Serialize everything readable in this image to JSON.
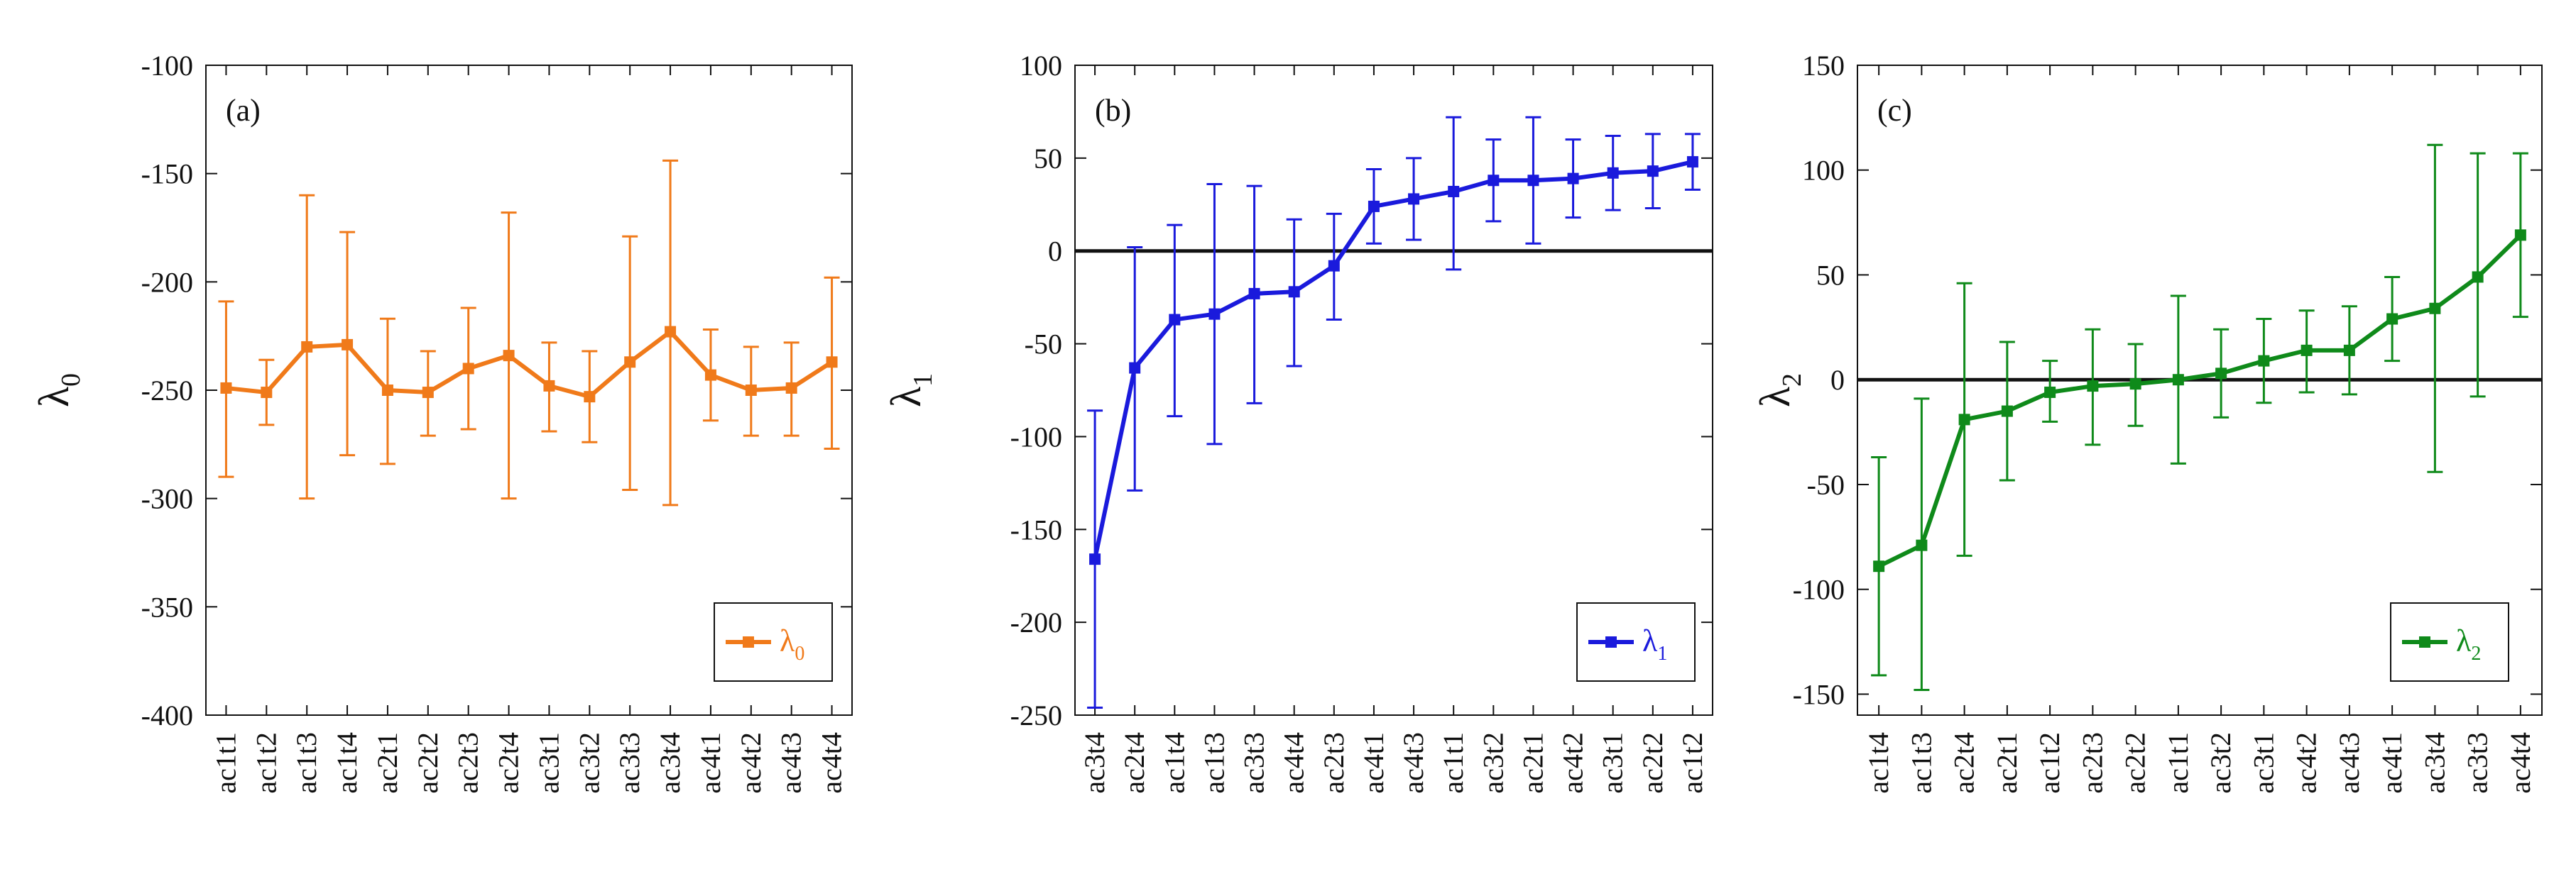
{
  "chart_data": [
    {
      "type": "line",
      "panel_label": "(a)",
      "ylabel": "λ",
      "ylabel_sub": "0",
      "legend": {
        "symbol": "λ",
        "sub": "0",
        "position": "bottom-right"
      },
      "color": "#f07a1a",
      "ylim": [
        -400,
        -100
      ],
      "yticks": [
        -100,
        -150,
        -200,
        -250,
        -300,
        -350,
        -400
      ],
      "zero_line": false,
      "grid": false,
      "categories": [
        "ac1t1",
        "ac1t2",
        "ac1t3",
        "ac1t4",
        "ac2t1",
        "ac2t2",
        "ac2t3",
        "ac2t4",
        "ac3t1",
        "ac3t2",
        "ac3t3",
        "ac3t4",
        "ac4t1",
        "ac4t2",
        "ac4t3",
        "ac4t4"
      ],
      "values": [
        -249,
        -251,
        -230,
        -229,
        -250,
        -251,
        -240,
        -234,
        -248,
        -253,
        -237,
        -223,
        -243,
        -250,
        -249,
        -237
      ],
      "err_low": [
        -290,
        -266,
        -300,
        -280,
        -284,
        -271,
        -268,
        -300,
        -269,
        -274,
        -296,
        -303,
        -264,
        -271,
        -271,
        -277
      ],
      "err_high": [
        -209,
        -236,
        -160,
        -177,
        -217,
        -232,
        -212,
        -168,
        -228,
        -232,
        -179,
        -144,
        -222,
        -230,
        -228,
        -198
      ]
    },
    {
      "type": "line",
      "panel_label": "(b)",
      "ylabel": "λ",
      "ylabel_sub": "1",
      "legend": {
        "symbol": "λ",
        "sub": "1",
        "position": "bottom-right"
      },
      "color": "#1a1adc",
      "ylim": [
        -250,
        100
      ],
      "yticks": [
        100,
        50,
        0,
        -50,
        -100,
        -150,
        -200,
        -250
      ],
      "zero_line": true,
      "grid": false,
      "categories": [
        "ac3t4",
        "ac2t4",
        "ac1t4",
        "ac1t3",
        "ac3t3",
        "ac4t4",
        "ac2t3",
        "ac4t1",
        "ac4t3",
        "ac1t1",
        "ac3t2",
        "ac2t1",
        "ac4t2",
        "ac3t1",
        "ac2t2",
        "ac1t2"
      ],
      "values": [
        -166,
        -63,
        -37,
        -34,
        -23,
        -22,
        -8,
        24,
        28,
        32,
        38,
        38,
        39,
        42,
        43,
        48
      ],
      "err_low": [
        -246,
        -129,
        -89,
        -104,
        -82,
        -62,
        -37,
        4,
        6,
        -10,
        16,
        4,
        18,
        22,
        23,
        33
      ],
      "err_high": [
        -86,
        2,
        14,
        36,
        35,
        17,
        20,
        44,
        50,
        72,
        60,
        72,
        60,
        62,
        63,
        63
      ]
    },
    {
      "type": "line",
      "panel_label": "(c)",
      "ylabel": "λ",
      "ylabel_sub": "2",
      "legend": {
        "symbol": "λ",
        "sub": "2",
        "position": "bottom-right"
      },
      "color": "#0f8a1a",
      "ylim": [
        -160,
        150
      ],
      "yticks": [
        150,
        100,
        50,
        0,
        -50,
        -100,
        -150
      ],
      "zero_line": true,
      "grid": false,
      "categories": [
        "ac1t4",
        "ac1t3",
        "ac2t4",
        "ac2t1",
        "ac1t2",
        "ac2t3",
        "ac2t2",
        "ac1t1",
        "ac3t2",
        "ac3t1",
        "ac4t2",
        "ac4t3",
        "ac4t1",
        "ac3t4",
        "ac3t3",
        "ac4t4"
      ],
      "values": [
        -89,
        -79,
        -19,
        -15,
        -6,
        -3,
        -2,
        0,
        3,
        9,
        14,
        14,
        29,
        34,
        49,
        69
      ],
      "err_low": [
        -141,
        -148,
        -84,
        -48,
        -20,
        -31,
        -22,
        -40,
        -18,
        -11,
        -6,
        -7,
        9,
        -44,
        -8,
        30
      ],
      "err_high": [
        -37,
        -9,
        46,
        18,
        9,
        24,
        17,
        40,
        24,
        29,
        33,
        35,
        49,
        112,
        108,
        108
      ]
    }
  ]
}
